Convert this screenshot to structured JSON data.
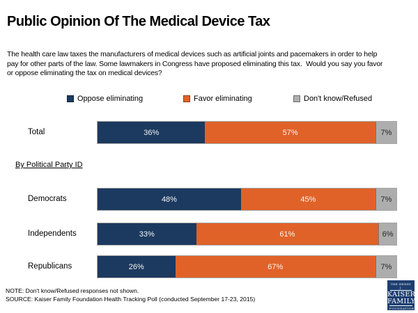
{
  "header": {
    "title": "Public Opinion Of The Medical Device Tax",
    "description_lines": [
      "The health care law taxes the manufacturers of medical devices such as artificial joints and pacemakers in order to help",
      "pay for other parts of the law. Some lawmakers in Congress have proposed eliminating this tax.  Would you say you favor",
      "or oppose eliminating the tax on medical devices?"
    ]
  },
  "legend": {
    "items": [
      {
        "label": "Oppose eliminating",
        "color": "#1C3A5F"
      },
      {
        "label": "Favor eliminating",
        "color": "#E06228"
      },
      {
        "label": "Don't know/Refused",
        "color": "#ADADAD"
      }
    ]
  },
  "chart_data": {
    "type": "bar",
    "stacked": true,
    "orientation": "horizontal",
    "title": "Public Opinion Of The Medical Device Tax",
    "series": [
      "Oppose eliminating",
      "Favor eliminating",
      "Don't know/Refused"
    ],
    "categories": [
      "Total",
      "Democrats",
      "Independents",
      "Republicans"
    ],
    "section_label": "By Political Party ID",
    "xlim": [
      0,
      100
    ],
    "legend_position": "top",
    "colors": {
      "oppose": "#1C3A5F",
      "favor": "#E06228",
      "dk": "#ADADAD"
    },
    "rows": [
      {
        "category": "Total",
        "values": [
          36,
          57,
          7
        ],
        "labels": [
          "36%",
          "57%",
          "7%"
        ]
      },
      {
        "category": "Democrats",
        "values": [
          48,
          45,
          7
        ],
        "labels": [
          "48%",
          "45%",
          "7%"
        ]
      },
      {
        "category": "Independents",
        "values": [
          33,
          61,
          6
        ],
        "labels": [
          "33%",
          "61%",
          "6%"
        ]
      },
      {
        "category": "Republicans",
        "values": [
          26,
          67,
          7
        ],
        "labels": [
          "26%",
          "67%",
          "7%"
        ]
      }
    ]
  },
  "footer": {
    "note": "NOTE: Don't know/Refused responses not shown.",
    "source": "SOURCE: Kaiser Family Foundation Health Tracking Poll (conducted September 17-23, 2015)"
  },
  "logo": {
    "top": "THE HENRY J.",
    "name1": "KAISER",
    "name2": "FAMILY",
    "bottom": "FOUNDATION"
  }
}
